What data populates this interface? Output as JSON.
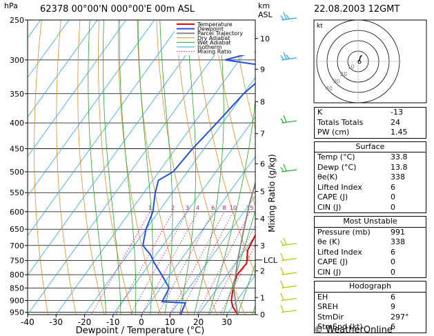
{
  "header": {
    "station": "62378  00°00'N  000°00'E  00m  ASL",
    "datetime": "22.08.2003  12GMT",
    "left_unit": "hPa",
    "right_unit_top": "km",
    "right_unit_bottom": "ASL",
    "mixing_axis": "Mixing Ratio (g/kg)",
    "copyright": "© WeatherOnline"
  },
  "chart_data": {
    "type": "line",
    "xlabel": "Dewpoint / Temperature (°C)",
    "ylabel": "hPa",
    "xlim": [
      -40,
      40
    ],
    "ylim": [
      960,
      250
    ],
    "y_scale": "log",
    "pressure_ticks": [
      250,
      300,
      350,
      400,
      450,
      500,
      550,
      600,
      650,
      700,
      750,
      800,
      850,
      900,
      950
    ],
    "temp_ticks": [
      -40,
      -30,
      -20,
      -10,
      0,
      10,
      20,
      30
    ],
    "height_ticks": [
      {
        "label": "10",
        "p": 272
      },
      {
        "label": "9",
        "p": 313
      },
      {
        "label": "8",
        "p": 363
      },
      {
        "label": "7",
        "p": 420
      },
      {
        "label": "6",
        "p": 482
      },
      {
        "label": "5",
        "p": 547
      },
      {
        "label": "4",
        "p": 620
      },
      {
        "label": "3",
        "p": 700
      },
      {
        "label": "2",
        "p": 786
      },
      {
        "label": "1",
        "p": 888
      },
      {
        "label": "0",
        "p": 960
      }
    ],
    "lcl": {
      "label": "LCL",
      "p": 748
    },
    "mixing_ratio_labels": [
      "1",
      "2",
      "3",
      "4",
      "6",
      "8",
      "10",
      "15",
      "20",
      "25"
    ],
    "mixing_ratio_values": [
      1,
      2,
      3,
      4,
      6,
      8,
      10,
      15,
      20,
      25
    ],
    "legend": [
      "Temperature",
      "Dewpoint",
      "Parcel Trajectory",
      "Dry Adiabat",
      "Wet Adiabat",
      "Isotherm",
      "Mixing Ratio"
    ],
    "colors": {
      "temperature": "#e00000",
      "dewpoint": "#1f4fe0",
      "parcel": "#888888",
      "dry_adiabat": "#e08a20",
      "wet_adiabat": "#21a82a",
      "isotherm": "#27a7d8",
      "mixing_ratio": "#cc1080"
    },
    "series": [
      {
        "name": "Temperature",
        "points": [
          [
            33.8,
            960
          ],
          [
            30,
            925
          ],
          [
            28,
            900
          ],
          [
            25.5,
            850
          ],
          [
            23.5,
            800
          ],
          [
            24,
            760
          ],
          [
            21,
            715
          ],
          [
            19.5,
            650
          ],
          [
            17,
            600
          ],
          [
            15,
            570
          ],
          [
            13,
            520
          ],
          [
            13,
            500
          ],
          [
            10.5,
            450
          ],
          [
            5,
            400
          ],
          [
            0,
            350
          ],
          [
            -3,
            320
          ],
          [
            -6,
            300
          ],
          [
            -10,
            280
          ],
          [
            -13,
            265
          ],
          [
            -15,
            250
          ]
        ]
      },
      {
        "name": "Dewpoint",
        "points": [
          [
            13.8,
            960
          ],
          [
            12.5,
            910
          ],
          [
            4,
            905
          ],
          [
            3,
            850
          ],
          [
            -3,
            800
          ],
          [
            -9,
            755
          ],
          [
            -12,
            730
          ],
          [
            -17,
            700
          ],
          [
            -20,
            650
          ],
          [
            -22,
            600
          ],
          [
            -26,
            550
          ],
          [
            -28,
            520
          ],
          [
            -25,
            500
          ],
          [
            -24,
            450
          ],
          [
            -22,
            400
          ],
          [
            -20,
            350
          ],
          [
            -16,
            310
          ],
          [
            -35,
            300
          ],
          [
            -15,
            275
          ],
          [
            -17,
            260
          ],
          [
            -20,
            250
          ]
        ]
      },
      {
        "name": "Parcel Trajectory",
        "points": [
          [
            33.8,
            960
          ],
          [
            26,
            855
          ],
          [
            20,
            748
          ],
          [
            15,
            660
          ],
          [
            10,
            580
          ],
          [
            5,
            500
          ],
          [
            -2,
            440
          ],
          [
            -8,
            390
          ],
          [
            -14,
            350
          ],
          [
            -20,
            310
          ],
          [
            -26,
            280
          ],
          [
            -30,
            260
          ],
          [
            -32,
            250
          ]
        ]
      }
    ],
    "wind_barbs": [
      {
        "p": 950,
        "speed_kt": 5,
        "color": "#b8c400"
      },
      {
        "p": 900,
        "speed_kt": 5,
        "color": "#b8c400"
      },
      {
        "p": 850,
        "speed_kt": 5,
        "color": "#b8c400"
      },
      {
        "p": 800,
        "speed_kt": 5,
        "color": "#b8c400"
      },
      {
        "p": 750,
        "speed_kt": 5,
        "color": "#b8c400"
      },
      {
        "p": 700,
        "speed_kt": 10,
        "color": "#b8c400"
      },
      {
        "p": 500,
        "speed_kt": 10,
        "color": "#21a82a"
      },
      {
        "p": 400,
        "speed_kt": 10,
        "color": "#21a82a"
      },
      {
        "p": 300,
        "speed_kt": 15,
        "color": "#27a7d8"
      },
      {
        "p": 250,
        "speed_kt": 15,
        "color": "#27a7d8"
      }
    ],
    "hodograph": {
      "unit_label": "kt",
      "ring_labels": [
        "10",
        "20",
        "30",
        "40"
      ],
      "trace": [
        [
          0,
          0
        ],
        [
          1.5,
          1.5
        ],
        [
          2,
          4
        ],
        [
          3.5,
          6
        ]
      ]
    }
  },
  "stats": {
    "top": [
      {
        "label": "K",
        "value": "-13"
      },
      {
        "label": "Totals Totals",
        "value": "24"
      },
      {
        "label": "PW (cm)",
        "value": "1.45"
      }
    ],
    "surface": {
      "title": "Surface",
      "rows": [
        {
          "label": "Temp (°C)",
          "value": "33.8"
        },
        {
          "label": "Dewp (°C)",
          "value": "13.8"
        },
        {
          "label": "θe(K)",
          "value": "338"
        },
        {
          "label": "Lifted Index",
          "value": "6"
        },
        {
          "label": "CAPE (J)",
          "value": "0"
        },
        {
          "label": "CIN (J)",
          "value": "0"
        }
      ]
    },
    "unstable": {
      "title": "Most Unstable",
      "rows": [
        {
          "label": "Pressure (mb)",
          "value": "991"
        },
        {
          "label": "θe (K)",
          "value": "338"
        },
        {
          "label": "Lifted Index",
          "value": "6"
        },
        {
          "label": "CAPE (J)",
          "value": "0"
        },
        {
          "label": "CIN (J)",
          "value": "0"
        }
      ]
    },
    "hodograph": {
      "title": "Hodograph",
      "rows": [
        {
          "label": "EH",
          "value": "6"
        },
        {
          "label": "SREH",
          "value": "9"
        },
        {
          "label": "StmDir",
          "value": "297°"
        },
        {
          "label": "StmSpd (kt)",
          "value": "6"
        }
      ]
    }
  }
}
